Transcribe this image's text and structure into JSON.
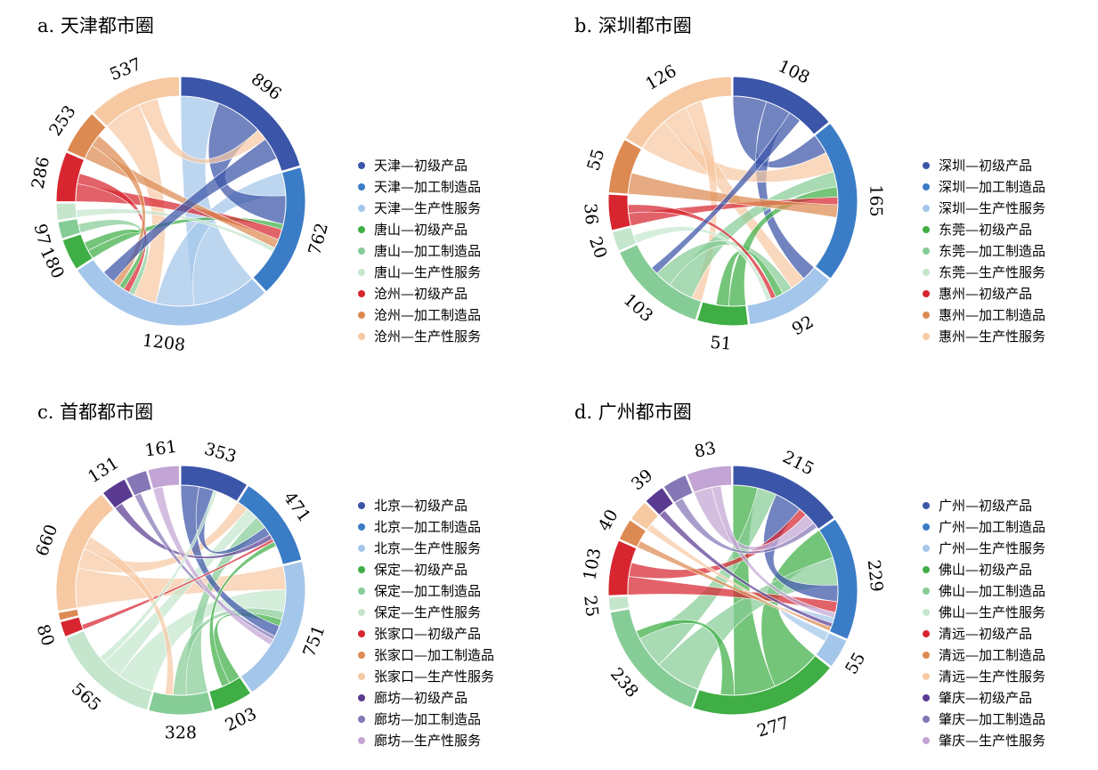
{
  "chart_data": [
    {
      "type": "chord",
      "title": "a. 天津都市圈",
      "groups": [
        {
          "name": "天津—初级产品",
          "value": 896,
          "color": "#3b55a8"
        },
        {
          "name": "天津—加工制造品",
          "value": 762,
          "color": "#3b7cc6"
        },
        {
          "name": "天津—生产性服务",
          "value": 1208,
          "color": "#a4c6ea"
        },
        {
          "name": "唐山—初级产品",
          "value": 180,
          "color": "#3fae45"
        },
        {
          "name": "唐山—加工制造品",
          "value": 97,
          "color": "#86cc96"
        },
        {
          "name": "唐山—生产性服务",
          "value": 97,
          "color": "#c5e6cd"
        },
        {
          "name": "沧州—初级产品",
          "value": 286,
          "color": "#d7262f"
        },
        {
          "name": "沧州—加工制造品",
          "value": 253,
          "color": "#dd8a52"
        },
        {
          "name": "沧州—生产性服务",
          "value": 537,
          "color": "#f6c9a3"
        }
      ],
      "arc_labels": [
        {
          "group": 0,
          "text": "896"
        },
        {
          "group": 1,
          "text": "762"
        },
        {
          "group": 2,
          "text": "1208"
        },
        {
          "group": 3,
          "text": "180"
        },
        {
          "group": 4,
          "text": "97"
        },
        {
          "group": 6,
          "text": "286"
        },
        {
          "group": 7,
          "text": "253"
        },
        {
          "group": 8,
          "text": "537"
        }
      ],
      "flows": [
        [
          2,
          0,
          430
        ],
        [
          2,
          1,
          260
        ],
        [
          0,
          1,
          320
        ],
        [
          8,
          2,
          260
        ],
        [
          4,
          2,
          60
        ],
        [
          3,
          1,
          60
        ],
        [
          6,
          1,
          120
        ],
        [
          7,
          1,
          100
        ],
        [
          8,
          0,
          130
        ],
        [
          6,
          2,
          70
        ],
        [
          5,
          1,
          50
        ],
        [
          3,
          2,
          60
        ],
        [
          7,
          2,
          80
        ],
        [
          0,
          2,
          150
        ]
      ]
    },
    {
      "type": "chord",
      "title": "b. 深圳都市圈",
      "groups": [
        {
          "name": "深圳—初级产品",
          "value": 108,
          "color": "#3b55a8"
        },
        {
          "name": "深圳—加工制造品",
          "value": 165,
          "color": "#3b7cc6"
        },
        {
          "name": "深圳—生产性服务",
          "value": 92,
          "color": "#a4c6ea"
        },
        {
          "name": "东莞—初级产品",
          "value": 51,
          "color": "#3fae45"
        },
        {
          "name": "东莞—加工制造品",
          "value": 103,
          "color": "#86cc96"
        },
        {
          "name": "东莞—生产性服务",
          "value": 20,
          "color": "#c5e6cd"
        },
        {
          "name": "惠州—初级产品",
          "value": 36,
          "color": "#d7262f"
        },
        {
          "name": "惠州—加工制造品",
          "value": 55,
          "color": "#dd8a52"
        },
        {
          "name": "惠州—生产性服务",
          "value": 126,
          "color": "#f6c9a3"
        }
      ],
      "arc_labels": [
        {
          "group": 0,
          "text": "108"
        },
        {
          "group": 1,
          "text": "165"
        },
        {
          "group": 2,
          "text": "92"
        },
        {
          "group": 3,
          "text": "51"
        },
        {
          "group": 4,
          "text": "103"
        },
        {
          "group": 5,
          "text": "20"
        },
        {
          "group": 6,
          "text": "36"
        },
        {
          "group": 7,
          "text": "55"
        },
        {
          "group": 8,
          "text": "126"
        }
      ],
      "flows": [
        [
          0,
          1,
          40
        ],
        [
          0,
          2,
          30
        ],
        [
          8,
          1,
          40
        ],
        [
          8,
          2,
          30
        ],
        [
          8,
          4,
          20
        ],
        [
          4,
          1,
          30
        ],
        [
          4,
          2,
          20
        ],
        [
          3,
          1,
          20
        ],
        [
          3,
          2,
          15
        ],
        [
          6,
          1,
          15
        ],
        [
          6,
          2,
          10
        ],
        [
          7,
          1,
          25
        ],
        [
          5,
          2,
          10
        ],
        [
          0,
          4,
          15
        ]
      ]
    },
    {
      "type": "chord",
      "title": "c. 首都都市圈",
      "groups": [
        {
          "name": "北京—初级产品",
          "value": 353,
          "color": "#3b55a8"
        },
        {
          "name": "北京—加工制造品",
          "value": 471,
          "color": "#3b7cc6"
        },
        {
          "name": "北京—生产性服务",
          "value": 751,
          "color": "#a4c6ea"
        },
        {
          "name": "保定—初级产品",
          "value": 203,
          "color": "#3fae45"
        },
        {
          "name": "保定—加工制造品",
          "value": 328,
          "color": "#86cc96"
        },
        {
          "name": "保定—生产性服务",
          "value": 565,
          "color": "#c5e6cd"
        },
        {
          "name": "张家口—初级产品",
          "value": 80,
          "color": "#d7262f"
        },
        {
          "name": "张家口—加工制造品",
          "value": 40,
          "color": "#dd8a52"
        },
        {
          "name": "张家口—生产性服务",
          "value": 660,
          "color": "#f6c9a3"
        },
        {
          "name": "廊坊—初级产品",
          "value": 131,
          "color": "#5a3b91"
        },
        {
          "name": "廊坊—加工制造品",
          "value": 110,
          "color": "#8576b6"
        },
        {
          "name": "廊坊—生产性服务",
          "value": 161,
          "color": "#c2a5d4"
        }
      ],
      "arc_labels": [
        {
          "group": 0,
          "text": "353"
        },
        {
          "group": 1,
          "text": "471"
        },
        {
          "group": 2,
          "text": "751"
        },
        {
          "group": 3,
          "text": "203"
        },
        {
          "group": 4,
          "text": "328"
        },
        {
          "group": 5,
          "text": "565"
        },
        {
          "group": 6,
          "text": "80"
        },
        {
          "group": 8,
          "text": "660"
        },
        {
          "group": 9,
          "text": "131"
        },
        {
          "group": 11,
          "text": "161"
        }
      ],
      "flows": [
        [
          8,
          2,
          240
        ],
        [
          8,
          1,
          120
        ],
        [
          5,
          2,
          220
        ],
        [
          5,
          1,
          120
        ],
        [
          4,
          1,
          130
        ],
        [
          4,
          2,
          80
        ],
        [
          3,
          2,
          70
        ],
        [
          0,
          2,
          110
        ],
        [
          0,
          1,
          90
        ],
        [
          9,
          1,
          50
        ],
        [
          10,
          2,
          40
        ],
        [
          11,
          2,
          60
        ],
        [
          6,
          1,
          30
        ],
        [
          8,
          4,
          80
        ],
        [
          3,
          1,
          50
        ],
        [
          5,
          0,
          40
        ]
      ]
    },
    {
      "type": "chord",
      "title": "d. 广州都市圈",
      "groups": [
        {
          "name": "广州—初级产品",
          "value": 215,
          "color": "#3b55a8"
        },
        {
          "name": "广州—加工制造品",
          "value": 229,
          "color": "#3b7cc6"
        },
        {
          "name": "广州—生产性服务",
          "value": 55,
          "color": "#a4c6ea"
        },
        {
          "name": "佛山—初级产品",
          "value": 277,
          "color": "#3fae45"
        },
        {
          "name": "佛山—加工制造品",
          "value": 238,
          "color": "#86cc96"
        },
        {
          "name": "佛山—生产性服务",
          "value": 25,
          "color": "#c5e6cd"
        },
        {
          "name": "清远—初级产品",
          "value": 103,
          "color": "#d7262f"
        },
        {
          "name": "清远—加工制造品",
          "value": 40,
          "color": "#dd8a52"
        },
        {
          "name": "清远—生产性服务",
          "value": 39,
          "color": "#f6c9a3"
        },
        {
          "name": "肇庆—初级产品",
          "value": 39,
          "color": "#5a3b91"
        },
        {
          "name": "肇庆—加工制造品",
          "value": 45,
          "color": "#8576b6"
        },
        {
          "name": "肇庆—生产性服务",
          "value": 83,
          "color": "#c2a5d4"
        }
      ],
      "arc_labels": [
        {
          "group": 0,
          "text": "215"
        },
        {
          "group": 1,
          "text": "229"
        },
        {
          "group": 2,
          "text": "55"
        },
        {
          "group": 3,
          "text": "277"
        },
        {
          "group": 4,
          "text": "238"
        },
        {
          "group": 5,
          "text": "25"
        },
        {
          "group": 6,
          "text": "103"
        },
        {
          "group": 7,
          "text": "40"
        },
        {
          "group": 9,
          "text": "39"
        },
        {
          "group": 11,
          "text": "83"
        }
      ],
      "flows": [
        [
          3,
          1,
          110
        ],
        [
          3,
          0,
          90
        ],
        [
          4,
          1,
          100
        ],
        [
          4,
          0,
          70
        ],
        [
          0,
          1,
          60
        ],
        [
          6,
          1,
          40
        ],
        [
          6,
          0,
          30
        ],
        [
          11,
          0,
          40
        ],
        [
          11,
          1,
          20
        ],
        [
          2,
          1,
          20
        ],
        [
          9,
          1,
          15
        ],
        [
          10,
          0,
          20
        ],
        [
          7,
          1,
          15
        ],
        [
          8,
          1,
          15
        ],
        [
          3,
          4,
          30
        ]
      ]
    }
  ]
}
